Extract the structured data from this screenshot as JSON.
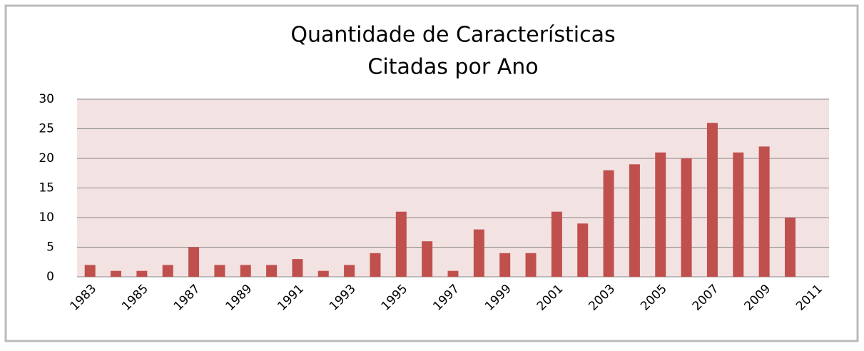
{
  "chart_data": {
    "type": "bar",
    "title": [
      "Quantidade de Características",
      "Citadas por Ano"
    ],
    "categories": [
      "1983",
      null,
      "1985",
      null,
      "1987",
      null,
      "1989",
      null,
      "1991",
      null,
      "1993",
      null,
      "1995",
      null,
      "1997",
      null,
      "1999",
      null,
      "2001",
      null,
      "2003",
      null,
      "2005",
      null,
      "2007",
      null,
      "2009",
      null,
      "2011"
    ],
    "values": [
      2,
      1,
      1,
      2,
      5,
      2,
      2,
      2,
      3,
      1,
      2,
      4,
      11,
      6,
      1,
      8,
      4,
      4,
      11,
      9,
      18,
      19,
      21,
      20,
      26,
      21,
      22,
      10,
      null
    ],
    "color": "#c0504d",
    "ylim": [
      0,
      30
    ],
    "yticks": [
      0,
      5,
      10,
      15,
      20,
      25,
      30
    ],
    "grid": true
  }
}
